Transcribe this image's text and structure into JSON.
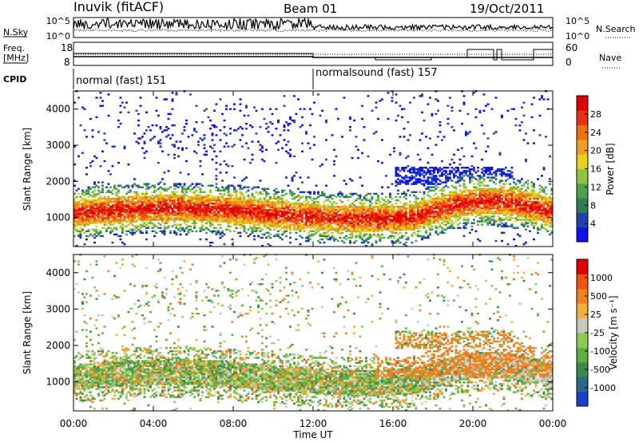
{
  "header": {
    "station": "Inuvik (fitACF)",
    "beam": "Beam 01",
    "date": "19/Oct/2011"
  },
  "top_panels": {
    "nsky_label": "N.Sky",
    "nsky_ticks": [
      "10^5",
      "10^0"
    ],
    "nsearch_label": "N.Search",
    "nsearch_ticks": [
      "10^5",
      "10^0"
    ],
    "freq_label_1": "Freq.",
    "freq_label_2": "[MHz]",
    "freq_ticks": [
      "18",
      "8"
    ],
    "nave_label": "Nave",
    "nave_ticks": [
      "60",
      "0"
    ],
    "cpid_label": "CPID",
    "cpid_segments": [
      {
        "label": "normal (fast) 151",
        "start_hour": 0
      },
      {
        "label": "normalsound (fast) 157",
        "start_hour": 12
      }
    ]
  },
  "chart_data": [
    {
      "type": "heatmap",
      "ylabel": "Slant Range [km]",
      "yticks": [
        "1000",
        "2000",
        "3000",
        "4000"
      ],
      "ylim": [
        200,
        4500
      ],
      "xlim": [
        0,
        24
      ],
      "colorbar": {
        "label": "Power [dB]",
        "ticks": [
          "4",
          "8",
          "12",
          "16",
          "20",
          "24",
          "28"
        ],
        "colors": [
          "#1010ee",
          "#2244aa",
          "#2e7d55",
          "#4ea24e",
          "#8cc43c",
          "#e8d020",
          "#f0a020",
          "#f07010",
          "#e83010",
          "#e00000"
        ]
      }
    },
    {
      "type": "heatmap",
      "ylabel": "Slant Range [km]",
      "yticks": [
        "1000",
        "2000",
        "3000",
        "4000"
      ],
      "ylim": [
        200,
        4500
      ],
      "xlim": [
        0,
        24
      ],
      "colorbar": {
        "label": "Velocity [m s⁻¹]",
        "ticks": [
          "1000",
          "500",
          "25",
          "-25",
          "-100",
          "-500",
          "-1000"
        ],
        "colors": [
          "#1a3ecc",
          "#2a6a88",
          "#3a8a50",
          "#5cb040",
          "#8ccc50",
          "#c8c8c0",
          "#f0b040",
          "#f08020",
          "#f05010",
          "#e00000"
        ]
      }
    }
  ],
  "x_axis": {
    "ticks": [
      "00:00",
      "04:00",
      "08:00",
      "12:00",
      "16:00",
      "20:00",
      "00:00"
    ],
    "label": "Time UT"
  }
}
